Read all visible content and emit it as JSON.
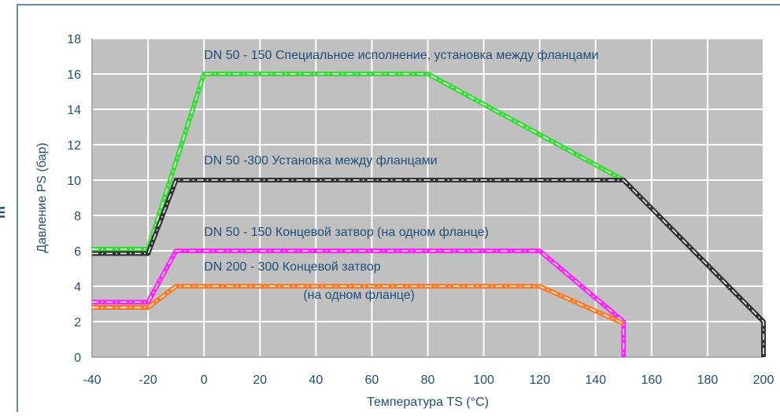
{
  "side_mark": "m",
  "chart_data": {
    "type": "line",
    "title": "",
    "xlabel": "Температура TS (°C)",
    "ylabel": "Давление PS (бар)",
    "xlim": [
      -40,
      200
    ],
    "ylim": [
      0,
      18
    ],
    "x_ticks": [
      -40,
      -20,
      0,
      20,
      40,
      60,
      80,
      100,
      120,
      140,
      160,
      180,
      200
    ],
    "y_ticks": [
      0,
      2,
      4,
      6,
      8,
      10,
      12,
      14,
      16,
      18
    ],
    "x_tick_labels": [
      "-40",
      "-20",
      "0",
      "20",
      "40",
      "60",
      "80",
      "100",
      "120",
      "140",
      "160",
      "180",
      "200"
    ],
    "y_tick_labels": [
      "0",
      "2",
      "4",
      "6",
      "8",
      "10",
      "12",
      "14",
      "16",
      "18"
    ],
    "grid": true,
    "plot_background": "#c0c0c0",
    "grid_color": "#ffffff",
    "frame_color": "#5a8fa8",
    "label_color": "#1f4e79",
    "series": [
      {
        "color": "#33dd33",
        "points": [
          [
            -40,
            6.1
          ],
          [
            -20,
            6.1
          ],
          [
            0,
            16
          ],
          [
            80,
            16
          ],
          [
            150,
            10
          ]
        ]
      },
      {
        "color": "#333333",
        "points": [
          [
            -40,
            5.85
          ],
          [
            -20,
            5.85
          ],
          [
            -10,
            10
          ],
          [
            150,
            10
          ],
          [
            200,
            2
          ],
          [
            200,
            0
          ]
        ]
      },
      {
        "color": "#ff22ff",
        "points": [
          [
            -40,
            3.1
          ],
          [
            -20,
            3.1
          ],
          [
            -10,
            6
          ],
          [
            120,
            6
          ],
          [
            150,
            2
          ],
          [
            150,
            0
          ]
        ]
      },
      {
        "color": "#ff7722",
        "points": [
          [
            -40,
            2.8
          ],
          [
            -20,
            2.8
          ],
          [
            -10,
            4
          ],
          [
            120,
            4
          ],
          [
            150,
            1.9
          ]
        ]
      }
    ],
    "annotations": [
      {
        "text": "DN 50 - 150 Специальное исполнение, установка между фланцами",
        "x": 0,
        "y": 16.85
      },
      {
        "text": "DN 50 -300 Установка между фланцами",
        "x": 0,
        "y": 10.9
      },
      {
        "text": "DN 50 - 150 Концевой затвор (на одном фланце)",
        "x": 0,
        "y": 6.85
      },
      {
        "text": "DN 200 - 300 Концевой затвор",
        "x": 0,
        "y": 4.9
      },
      {
        "text": "(на одном фланце)",
        "x": 35.5,
        "y": 3.3
      }
    ]
  }
}
